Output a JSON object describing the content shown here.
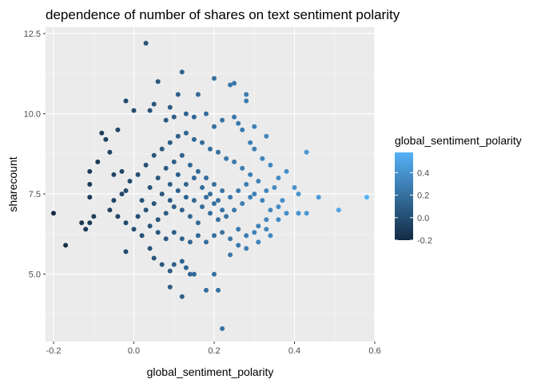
{
  "chart_data": {
    "type": "scatter",
    "title": "dependence of number of shares on text sentiment polarity",
    "xlabel": "global_sentiment_polarity",
    "ylabel": "sharecount",
    "xlim": [
      -0.22,
      0.6
    ],
    "ylim": [
      2.9,
      12.7
    ],
    "x_ticks": [
      -0.2,
      0.0,
      0.2,
      0.4,
      0.6
    ],
    "x_tick_labels": [
      "-0.2",
      "0.0",
      "0.2",
      "0.4",
      "0.6"
    ],
    "y_ticks": [
      5.0,
      7.5,
      10.0,
      12.5
    ],
    "y_tick_labels": [
      "5.0",
      "7.5",
      "10.0",
      "12.5"
    ],
    "grid": true,
    "background": "#ebebeb",
    "legend": {
      "title": "global_sentiment_polarity",
      "placement": "right",
      "ticks": [
        -0.2,
        0.0,
        0.2,
        0.4
      ],
      "tick_labels": [
        "-0.2",
        "0.0",
        "0.2",
        "0.4"
      ],
      "range": [
        -0.2,
        0.58
      ],
      "color_low": "#132b43",
      "color_high": "#56b1f7"
    },
    "points": [
      [
        0.03,
        12.2
      ],
      [
        0.06,
        11.0
      ],
      [
        0.12,
        11.3
      ],
      [
        0.2,
        11.1
      ],
      [
        0.24,
        10.9
      ],
      [
        0.25,
        10.95
      ],
      [
        0.11,
        10.6
      ],
      [
        0.28,
        10.6
      ],
      [
        0.28,
        10.4
      ],
      [
        -0.02,
        10.4
      ],
      [
        0.05,
        10.3
      ],
      [
        0.16,
        10.6
      ],
      [
        0.0,
        10.1
      ],
      [
        0.04,
        10.1
      ],
      [
        -0.08,
        9.4
      ],
      [
        -0.04,
        9.5
      ],
      [
        0.33,
        9.3
      ],
      [
        0.3,
        9.6
      ],
      [
        0.43,
        8.8
      ],
      [
        0.38,
        8.2
      ],
      [
        0.4,
        7.7
      ],
      [
        0.41,
        7.5
      ],
      [
        0.46,
        7.4
      ],
      [
        0.58,
        7.4
      ],
      [
        0.51,
        7.0
      ],
      [
        0.43,
        6.9
      ],
      [
        0.41,
        6.9
      ],
      [
        0.38,
        6.9
      ],
      [
        0.36,
        6.7
      ],
      [
        0.33,
        6.4
      ],
      [
        -0.2,
        6.9
      ],
      [
        -0.17,
        5.9
      ],
      [
        -0.13,
        6.6
      ],
      [
        -0.12,
        6.4
      ],
      [
        -0.11,
        6.6
      ],
      [
        -0.1,
        6.8
      ],
      [
        -0.11,
        7.4
      ],
      [
        -0.11,
        8.2
      ],
      [
        -0.11,
        7.8
      ],
      [
        -0.09,
        8.5
      ],
      [
        -0.06,
        8.8
      ],
      [
        -0.07,
        9.2
      ],
      [
        -0.05,
        8.1
      ],
      [
        -0.02,
        7.6
      ],
      [
        -0.03,
        8.2
      ],
      [
        -0.02,
        5.7
      ],
      [
        0.04,
        5.8
      ],
      [
        0.05,
        5.5
      ],
      [
        0.07,
        5.3
      ],
      [
        0.09,
        5.1
      ],
      [
        0.1,
        5.3
      ],
      [
        0.12,
        5.4
      ],
      [
        0.13,
        5.2
      ],
      [
        0.14,
        5.0
      ],
      [
        0.15,
        5.0
      ],
      [
        0.09,
        4.6
      ],
      [
        0.12,
        4.3
      ],
      [
        0.18,
        4.5
      ],
      [
        0.21,
        4.5
      ],
      [
        0.22,
        3.3
      ],
      [
        0.2,
        5.0
      ],
      [
        0.24,
        5.6
      ],
      [
        0.26,
        5.9
      ],
      [
        0.28,
        5.8
      ],
      [
        0.31,
        6.0
      ],
      [
        0.34,
        6.2
      ],
      [
        0.22,
        9.8
      ],
      [
        0.25,
        9.9
      ],
      [
        0.2,
        9.6
      ],
      [
        0.18,
        10.0
      ],
      [
        0.15,
        9.9
      ],
      [
        0.13,
        10.0
      ],
      [
        0.09,
        10.2
      ],
      [
        0.08,
        9.8
      ],
      [
        0.1,
        9.9
      ],
      [
        0.26,
        9.7
      ],
      [
        0.27,
        9.5
      ],
      [
        0.29,
        9.1
      ],
      [
        0.3,
        8.9
      ],
      [
        0.32,
        8.6
      ],
      [
        0.34,
        8.4
      ],
      [
        0.36,
        8.0
      ],
      [
        0.35,
        7.7
      ],
      [
        0.37,
        7.3
      ],
      [
        0.36,
        7.1
      ],
      [
        0.34,
        7.0
      ],
      [
        0.33,
        6.7
      ],
      [
        0.31,
        6.5
      ],
      [
        0.3,
        6.3
      ],
      [
        0.28,
        6.2
      ],
      [
        0.26,
        6.4
      ],
      [
        0.24,
        6.1
      ],
      [
        0.22,
        6.3
      ],
      [
        0.2,
        6.2
      ],
      [
        0.18,
        6.0
      ],
      [
        0.16,
        6.2
      ],
      [
        0.14,
        6.0
      ],
      [
        0.12,
        6.1
      ],
      [
        0.1,
        6.3
      ],
      [
        0.08,
        6.1
      ],
      [
        0.06,
        6.3
      ],
      [
        0.04,
        6.5
      ],
      [
        0.02,
        6.2
      ],
      [
        0.0,
        6.4
      ],
      [
        -0.02,
        6.6
      ],
      [
        -0.04,
        6.8
      ],
      [
        -0.06,
        7.0
      ],
      [
        -0.05,
        7.3
      ],
      [
        -0.03,
        7.5
      ],
      [
        -0.01,
        7.9
      ],
      [
        0.01,
        8.1
      ],
      [
        0.03,
        8.4
      ],
      [
        0.05,
        8.7
      ],
      [
        0.07,
        8.9
      ],
      [
        0.09,
        9.1
      ],
      [
        0.11,
        9.3
      ],
      [
        0.13,
        9.4
      ],
      [
        0.15,
        9.2
      ],
      [
        0.17,
        9.1
      ],
      [
        0.19,
        8.9
      ],
      [
        0.21,
        8.8
      ],
      [
        0.23,
        8.6
      ],
      [
        0.25,
        8.5
      ],
      [
        0.27,
        8.3
      ],
      [
        0.29,
        8.1
      ],
      [
        0.31,
        7.9
      ],
      [
        0.33,
        7.6
      ],
      [
        0.29,
        7.4
      ],
      [
        0.27,
        7.2
      ],
      [
        0.25,
        7.0
      ],
      [
        0.23,
        6.8
      ],
      [
        0.21,
        6.7
      ],
      [
        0.19,
        6.9
      ],
      [
        0.17,
        7.1
      ],
      [
        0.15,
        7.3
      ],
      [
        0.13,
        7.4
      ],
      [
        0.11,
        7.6
      ],
      [
        0.09,
        7.8
      ],
      [
        0.07,
        7.5
      ],
      [
        0.05,
        7.2
      ],
      [
        0.03,
        7.0
      ],
      [
        0.01,
        6.8
      ],
      [
        0.02,
        7.3
      ],
      [
        0.04,
        7.7
      ],
      [
        0.06,
        8.0
      ],
      [
        0.08,
        8.3
      ],
      [
        0.1,
        8.5
      ],
      [
        0.12,
        8.7
      ],
      [
        0.14,
        8.4
      ],
      [
        0.16,
        8.2
      ],
      [
        0.18,
        8.0
      ],
      [
        0.2,
        7.8
      ],
      [
        0.22,
        7.6
      ],
      [
        0.24,
        7.4
      ],
      [
        0.26,
        7.6
      ],
      [
        0.28,
        7.8
      ],
      [
        0.3,
        7.5
      ],
      [
        0.32,
        7.3
      ],
      [
        0.12,
        7.0
      ],
      [
        0.14,
        6.8
      ],
      [
        0.16,
        6.6
      ],
      [
        0.18,
        7.4
      ],
      [
        0.2,
        7.2
      ],
      [
        0.22,
        7.0
      ],
      [
        0.1,
        7.1
      ],
      [
        0.08,
        6.9
      ],
      [
        0.06,
        6.7
      ],
      [
        0.13,
        7.8
      ],
      [
        0.15,
        8.0
      ],
      [
        0.17,
        7.7
      ],
      [
        0.19,
        7.5
      ],
      [
        0.21,
        7.3
      ],
      [
        0.11,
        8.1
      ],
      [
        0.09,
        7.3
      ]
    ]
  }
}
